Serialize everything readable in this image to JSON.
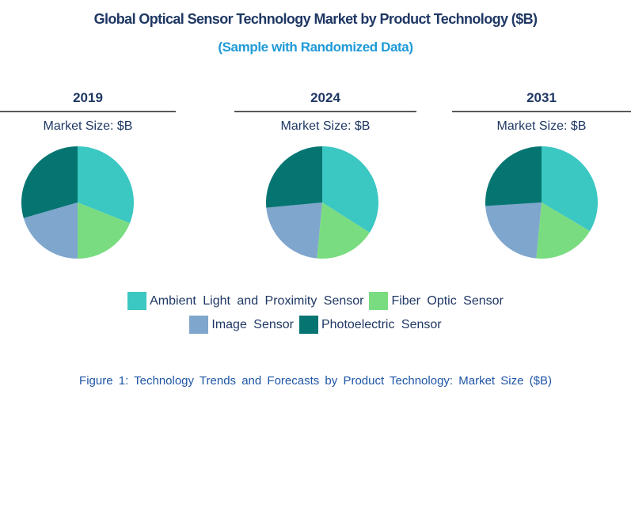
{
  "page": {
    "background": "#ffffff"
  },
  "header": {
    "title": "Global Optical Sensor Technology Market by Product Technology ($B)",
    "subtitle": "(Sample with Randomized Data)",
    "title_color": "#1F3864",
    "subtitle_color": "#1F9AD7"
  },
  "columns": [
    {
      "year": "2019",
      "market_size_label": "Market Size: $B"
    },
    {
      "year": "2024",
      "market_size_label": "Market Size: $B"
    },
    {
      "year": "2031",
      "market_size_label": "Market Size: $B"
    }
  ],
  "legend": {
    "items": [
      {
        "label": "Ambient Light and Proximity Sensor",
        "color": "#3BC7C2"
      },
      {
        "label": "Fiber Optic Sensor",
        "color": "#7ADC80"
      },
      {
        "label": "Image Sensor",
        "color": "#7FA6CD"
      },
      {
        "label": "Photoelectric Sensor",
        "color": "#067571"
      }
    ]
  },
  "caption": {
    "text": "Figure 1: Technology Trends and Forecasts by Product Technology: Market Size ($B)",
    "color": "#1F55A6"
  },
  "chart_data": [
    {
      "type": "pie",
      "title": "2019",
      "value_label": "Market Size: $B",
      "categories": [
        "Ambient Light and Proximity Sensor",
        "Fiber Optic Sensor",
        "Image Sensor",
        "Photoelectric Sensor"
      ],
      "values": [
        31,
        19,
        20.5,
        29.5
      ],
      "unit": "percent share, estimated from slice angles (no numeric labels shown in chart)",
      "start_angle_deg": 0,
      "direction": "clockwise",
      "legend_position": "bottom-shared"
    },
    {
      "type": "pie",
      "title": "2024",
      "value_label": "Market Size: $B",
      "categories": [
        "Ambient Light and Proximity Sensor",
        "Fiber Optic Sensor",
        "Image Sensor",
        "Photoelectric Sensor"
      ],
      "values": [
        34,
        17.5,
        22,
        26.5
      ],
      "unit": "percent share, estimated from slice angles (no numeric labels shown in chart)",
      "start_angle_deg": 0,
      "direction": "clockwise",
      "legend_position": "bottom-shared"
    },
    {
      "type": "pie",
      "title": "2031",
      "value_label": "Market Size: $B",
      "categories": [
        "Ambient Light and Proximity Sensor",
        "Fiber Optic Sensor",
        "Image Sensor",
        "Photoelectric Sensor"
      ],
      "values": [
        33.5,
        18,
        22.5,
        26
      ],
      "unit": "percent share, estimated from slice angles (no numeric labels shown in chart)",
      "start_angle_deg": 0,
      "direction": "clockwise",
      "legend_position": "bottom-shared"
    }
  ]
}
